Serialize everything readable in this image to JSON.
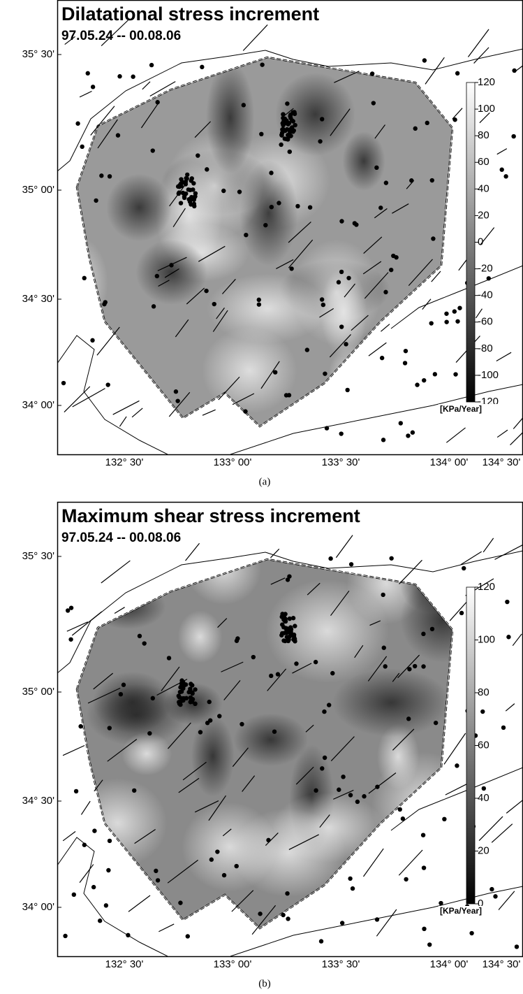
{
  "panels": [
    {
      "title": "Dilatational stress increment",
      "subtitle": "97.05.24 -- 00.08.06",
      "lat_labels": [
        "35° 30'",
        "35° 00'",
        "34° 30'",
        "34° 00'"
      ],
      "lon_labels": [
        "132° 30'",
        "133° 00'",
        "133° 30'",
        "134° 00'",
        "134° 30'"
      ],
      "colorbar": {
        "ticks": [
          120,
          100,
          80,
          60,
          40,
          20,
          0,
          -20,
          -40,
          -60,
          -80,
          -100,
          -120
        ],
        "unit": "[KPa/Year]"
      },
      "caption": "(a)"
    },
    {
      "title": "Maximum shear stress increment",
      "subtitle": "97.05.24 -- 00.08.06",
      "lat_labels": [
        "35° 30'",
        "35° 00'",
        "34° 30'",
        "34° 00'"
      ],
      "lon_labels": [
        "132° 30'",
        "133° 00'",
        "133° 30'",
        "134° 00'",
        "134° 30'"
      ],
      "colorbar": {
        "ticks": [
          120,
          100,
          80,
          60,
          40,
          20,
          0
        ],
        "unit": "[KPa/Year]"
      },
      "caption": "(b)"
    }
  ]
}
